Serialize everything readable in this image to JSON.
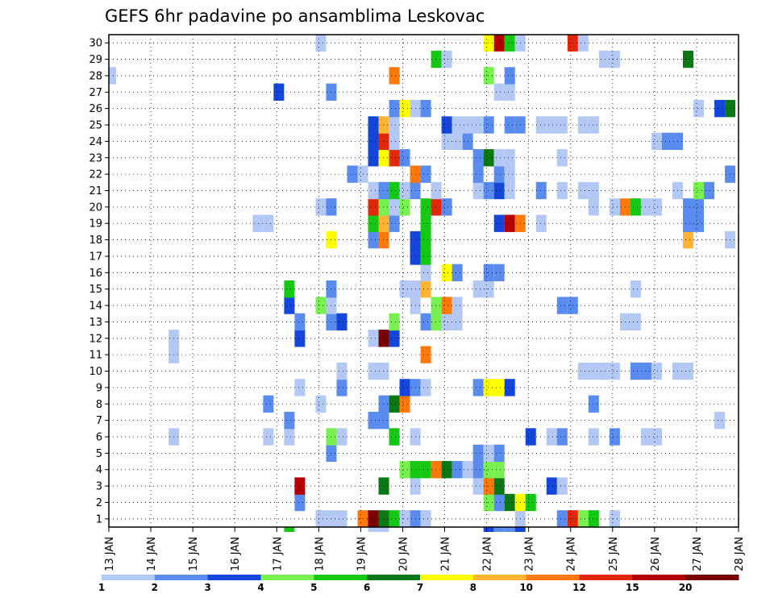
{
  "chart_data": {
    "type": "heatmap",
    "title": "GEFS 6hr padavine po ansamblima Leskovac",
    "xlabel": "",
    "ylabel": "",
    "x_ticks": [
      "13 JAN",
      "14 JAN",
      "15 JAN",
      "16 JAN",
      "17 JAN",
      "18 JAN",
      "19 JAN",
      "20 JAN",
      "21 JAN",
      "22 JAN",
      "23 JAN",
      "24 JAN",
      "25 JAN",
      "26 JAN",
      "27 JAN",
      "28 JAN"
    ],
    "x_range_days": [
      13,
      28
    ],
    "steps_per_day": 4,
    "y_ticks": [
      "1",
      "2",
      "3",
      "4",
      "5",
      "6",
      "7",
      "8",
      "9",
      "10",
      "11",
      "12",
      "13",
      "14",
      "15",
      "16",
      "17",
      "18",
      "19",
      "20",
      "21",
      "22",
      "23",
      "24",
      "25",
      "26",
      "27",
      "28",
      "29",
      "30"
    ],
    "y_range": [
      0,
      30
    ],
    "grid": true,
    "legend": {
      "position": "bottom",
      "labels": [
        "1",
        "2",
        "3",
        "4",
        "5",
        "6",
        "7",
        "8",
        "10",
        "12",
        "15",
        "20"
      ],
      "colors": [
        "#b4c8f5",
        "#5a8cf0",
        "#1446dc",
        "#78f050",
        "#14c814",
        "#0a7814",
        "#ffff00",
        "#ffb432",
        "#ff780a",
        "#e1280a",
        "#b40000",
        "#780000"
      ]
    },
    "cells": [
      {
        "m": 1,
        "x": 18.05,
        "v": 1
      },
      {
        "m": 1,
        "x": 18.3,
        "v": 1
      },
      {
        "m": 1,
        "x": 18.55,
        "v": 1
      },
      {
        "m": 1,
        "x": 19.05,
        "v": 10
      },
      {
        "m": 1,
        "x": 19.3,
        "v": 20
      },
      {
        "m": 1,
        "x": 19.55,
        "v": 6
      },
      {
        "m": 1,
        "x": 19.8,
        "v": 5
      },
      {
        "m": 1,
        "x": 20.05,
        "v": 1
      },
      {
        "m": 1,
        "x": 20.3,
        "v": 2
      },
      {
        "m": 1,
        "x": 20.55,
        "v": 1
      },
      {
        "m": 1,
        "x": 22.8,
        "v": 1
      },
      {
        "m": 1,
        "x": 23.8,
        "v": 2
      },
      {
        "m": 1,
        "x": 24.05,
        "v": 12
      },
      {
        "m": 1,
        "x": 24.3,
        "v": 4
      },
      {
        "m": 1,
        "x": 24.55,
        "v": 5
      },
      {
        "m": 1,
        "x": 25.05,
        "v": 1
      },
      {
        "m": 2,
        "x": 17.55,
        "v": 2
      },
      {
        "m": 2,
        "x": 22.05,
        "v": 4
      },
      {
        "m": 2,
        "x": 22.3,
        "v": 2
      },
      {
        "m": 2,
        "x": 22.55,
        "v": 6
      },
      {
        "m": 2,
        "x": 22.8,
        "v": 7
      },
      {
        "m": 2,
        "x": 23.05,
        "v": 5
      },
      {
        "m": 3,
        "x": 17.55,
        "v": 15
      },
      {
        "m": 3,
        "x": 19.55,
        "v": 6
      },
      {
        "m": 3,
        "x": 20.3,
        "v": 1
      },
      {
        "m": 3,
        "x": 21.8,
        "v": 1
      },
      {
        "m": 3,
        "x": 22.05,
        "v": 10
      },
      {
        "m": 3,
        "x": 22.3,
        "v": 6
      },
      {
        "m": 3,
        "x": 23.55,
        "v": 3
      },
      {
        "m": 3,
        "x": 23.8,
        "v": 1
      },
      {
        "m": 4,
        "x": 20.05,
        "v": 4
      },
      {
        "m": 4,
        "x": 20.3,
        "v": 5
      },
      {
        "m": 4,
        "x": 20.55,
        "v": 5
      },
      {
        "m": 4,
        "x": 20.8,
        "v": 10
      },
      {
        "m": 4,
        "x": 21.05,
        "v": 6
      },
      {
        "m": 4,
        "x": 21.3,
        "v": 2
      },
      {
        "m": 4,
        "x": 21.55,
        "v": 1
      },
      {
        "m": 4,
        "x": 21.8,
        "v": 2
      },
      {
        "m": 4,
        "x": 22.05,
        "v": 4
      },
      {
        "m": 4,
        "x": 22.3,
        "v": 4
      },
      {
        "m": 5,
        "x": 18.3,
        "v": 2
      },
      {
        "m": 5,
        "x": 21.8,
        "v": 2
      },
      {
        "m": 5,
        "x": 22.05,
        "v": 1
      },
      {
        "m": 5,
        "x": 22.3,
        "v": 2
      },
      {
        "m": 6,
        "x": 14.55,
        "v": 1
      },
      {
        "m": 6,
        "x": 16.8,
        "v": 1
      },
      {
        "m": 6,
        "x": 17.3,
        "v": 1
      },
      {
        "m": 6,
        "x": 18.3,
        "v": 4
      },
      {
        "m": 6,
        "x": 18.55,
        "v": 1
      },
      {
        "m": 6,
        "x": 19.8,
        "v": 5
      },
      {
        "m": 6,
        "x": 20.3,
        "v": 1
      },
      {
        "m": 6,
        "x": 23.05,
        "v": 3
      },
      {
        "m": 6,
        "x": 23.55,
        "v": 1
      },
      {
        "m": 6,
        "x": 23.8,
        "v": 2
      },
      {
        "m": 6,
        "x": 24.55,
        "v": 1
      },
      {
        "m": 6,
        "x": 25.05,
        "v": 2
      },
      {
        "m": 6,
        "x": 25.8,
        "v": 1
      },
      {
        "m": 6,
        "x": 26.05,
        "v": 1
      },
      {
        "m": 7,
        "x": 17.3,
        "v": 2
      },
      {
        "m": 7,
        "x": 19.3,
        "v": 2
      },
      {
        "m": 7,
        "x": 19.55,
        "v": 2
      },
      {
        "m": 7,
        "x": 27.55,
        "v": 1
      },
      {
        "m": 8,
        "x": 16.8,
        "v": 2
      },
      {
        "m": 8,
        "x": 18.05,
        "v": 1
      },
      {
        "m": 8,
        "x": 19.55,
        "v": 2
      },
      {
        "m": 8,
        "x": 19.8,
        "v": 6
      },
      {
        "m": 8,
        "x": 20.05,
        "v": 10
      },
      {
        "m": 8,
        "x": 24.55,
        "v": 2
      },
      {
        "m": 9,
        "x": 17.55,
        "v": 1
      },
      {
        "m": 9,
        "x": 18.55,
        "v": 2
      },
      {
        "m": 9,
        "x": 20.05,
        "v": 3
      },
      {
        "m": 9,
        "x": 20.3,
        "v": 2
      },
      {
        "m": 9,
        "x": 20.55,
        "v": 1
      },
      {
        "m": 9,
        "x": 21.8,
        "v": 2
      },
      {
        "m": 9,
        "x": 22.05,
        "v": 7
      },
      {
        "m": 9,
        "x": 22.3,
        "v": 7
      },
      {
        "m": 9,
        "x": 22.55,
        "v": 3
      },
      {
        "m": 10,
        "x": 18.55,
        "v": 1
      },
      {
        "m": 10,
        "x": 19.3,
        "v": 1
      },
      {
        "m": 10,
        "x": 19.55,
        "v": 1
      },
      {
        "m": 10,
        "x": 24.3,
        "v": 1
      },
      {
        "m": 10,
        "x": 24.55,
        "v": 1
      },
      {
        "m": 10,
        "x": 24.8,
        "v": 1
      },
      {
        "m": 10,
        "x": 25.05,
        "v": 1
      },
      {
        "m": 10,
        "x": 25.55,
        "v": 2
      },
      {
        "m": 10,
        "x": 25.8,
        "v": 2
      },
      {
        "m": 10,
        "x": 26.05,
        "v": 1
      },
      {
        "m": 10,
        "x": 26.55,
        "v": 1
      },
      {
        "m": 10,
        "x": 26.8,
        "v": 1
      },
      {
        "m": 11,
        "x": 14.55,
        "v": 1
      },
      {
        "m": 11,
        "x": 20.55,
        "v": 10
      },
      {
        "m": 12,
        "x": 14.55,
        "v": 1
      },
      {
        "m": 12,
        "x": 17.55,
        "v": 3
      },
      {
        "m": 12,
        "x": 19.3,
        "v": 1
      },
      {
        "m": 12,
        "x": 19.55,
        "v": 20
      },
      {
        "m": 12,
        "x": 19.8,
        "v": 3
      },
      {
        "m": 13,
        "x": 17.55,
        "v": 2
      },
      {
        "m": 13,
        "x": 18.3,
        "v": 2
      },
      {
        "m": 13,
        "x": 18.55,
        "v": 3
      },
      {
        "m": 13,
        "x": 19.8,
        "v": 4
      },
      {
        "m": 13,
        "x": 20.55,
        "v": 2
      },
      {
        "m": 13,
        "x": 20.8,
        "v": 4
      },
      {
        "m": 13,
        "x": 21.05,
        "v": 1
      },
      {
        "m": 13,
        "x": 21.3,
        "v": 1
      },
      {
        "m": 13,
        "x": 25.3,
        "v": 1
      },
      {
        "m": 13,
        "x": 25.55,
        "v": 1
      },
      {
        "m": 14,
        "x": 17.3,
        "v": 3
      },
      {
        "m": 14,
        "x": 18.05,
        "v": 4
      },
      {
        "m": 14,
        "x": 18.3,
        "v": 1
      },
      {
        "m": 14,
        "x": 20.3,
        "v": 1
      },
      {
        "m": 14,
        "x": 20.8,
        "v": 4
      },
      {
        "m": 14,
        "x": 21.05,
        "v": 10
      },
      {
        "m": 14,
        "x": 21.3,
        "v": 1
      },
      {
        "m": 14,
        "x": 23.8,
        "v": 2
      },
      {
        "m": 14,
        "x": 24.05,
        "v": 2
      },
      {
        "m": 15,
        "x": 17.3,
        "v": 5
      },
      {
        "m": 15,
        "x": 18.3,
        "v": 2
      },
      {
        "m": 15,
        "x": 20.05,
        "v": 1
      },
      {
        "m": 15,
        "x": 20.3,
        "v": 1
      },
      {
        "m": 15,
        "x": 20.55,
        "v": 8
      },
      {
        "m": 15,
        "x": 21.8,
        "v": 1
      },
      {
        "m": 15,
        "x": 22.05,
        "v": 1
      },
      {
        "m": 15,
        "x": 25.55,
        "v": 1
      },
      {
        "m": 16,
        "x": 20.55,
        "v": 1
      },
      {
        "m": 16,
        "x": 21.05,
        "v": 7
      },
      {
        "m": 16,
        "x": 21.3,
        "v": 2
      },
      {
        "m": 16,
        "x": 22.05,
        "v": 2
      },
      {
        "m": 16,
        "x": 22.3,
        "v": 2
      },
      {
        "m": 17,
        "x": 20.3,
        "v": 3
      },
      {
        "m": 17,
        "x": 20.55,
        "v": 5
      },
      {
        "m": 18,
        "x": 18.3,
        "v": 7
      },
      {
        "m": 18,
        "x": 19.3,
        "v": 2
      },
      {
        "m": 18,
        "x": 19.55,
        "v": 10
      },
      {
        "m": 18,
        "x": 20.3,
        "v": 3
      },
      {
        "m": 18,
        "x": 20.55,
        "v": 5
      },
      {
        "m": 18,
        "x": 26.8,
        "v": 8
      },
      {
        "m": 18,
        "x": 27.8,
        "v": 1
      },
      {
        "m": 19,
        "x": 16.55,
        "v": 1
      },
      {
        "m": 19,
        "x": 16.8,
        "v": 1
      },
      {
        "m": 19,
        "x": 19.3,
        "v": 5
      },
      {
        "m": 19,
        "x": 19.55,
        "v": 8
      },
      {
        "m": 19,
        "x": 19.8,
        "v": 2
      },
      {
        "m": 19,
        "x": 20.55,
        "v": 5
      },
      {
        "m": 19,
        "x": 22.3,
        "v": 3
      },
      {
        "m": 19,
        "x": 22.55,
        "v": 15
      },
      {
        "m": 19,
        "x": 22.8,
        "v": 10
      },
      {
        "m": 19,
        "x": 23.3,
        "v": 1
      },
      {
        "m": 19,
        "x": 26.8,
        "v": 2
      },
      {
        "m": 19,
        "x": 27.05,
        "v": 2
      },
      {
        "m": 20,
        "x": 18.05,
        "v": 1
      },
      {
        "m": 20,
        "x": 18.3,
        "v": 2
      },
      {
        "m": 20,
        "x": 19.3,
        "v": 12
      },
      {
        "m": 20,
        "x": 19.55,
        "v": 4
      },
      {
        "m": 20,
        "x": 19.8,
        "v": 1
      },
      {
        "m": 20,
        "x": 20.05,
        "v": 4
      },
      {
        "m": 20,
        "x": 20.55,
        "v": 5
      },
      {
        "m": 20,
        "x": 20.8,
        "v": 12
      },
      {
        "m": 20,
        "x": 21.05,
        "v": 2
      },
      {
        "m": 20,
        "x": 24.55,
        "v": 1
      },
      {
        "m": 20,
        "x": 25.05,
        "v": 1
      },
      {
        "m": 20,
        "x": 25.3,
        "v": 10
      },
      {
        "m": 20,
        "x": 25.55,
        "v": 5
      },
      {
        "m": 20,
        "x": 25.8,
        "v": 1
      },
      {
        "m": 20,
        "x": 26.05,
        "v": 1
      },
      {
        "m": 20,
        "x": 26.8,
        "v": 2
      },
      {
        "m": 20,
        "x": 27.05,
        "v": 2
      },
      {
        "m": 21,
        "x": 19.3,
        "v": 1
      },
      {
        "m": 21,
        "x": 19.55,
        "v": 2
      },
      {
        "m": 21,
        "x": 19.8,
        "v": 5
      },
      {
        "m": 21,
        "x": 20.05,
        "v": 1
      },
      {
        "m": 21,
        "x": 20.3,
        "v": 2
      },
      {
        "m": 21,
        "x": 20.8,
        "v": 1
      },
      {
        "m": 21,
        "x": 21.8,
        "v": 1
      },
      {
        "m": 21,
        "x": 22.05,
        "v": 2
      },
      {
        "m": 21,
        "x": 22.3,
        "v": 3
      },
      {
        "m": 21,
        "x": 22.55,
        "v": 1
      },
      {
        "m": 21,
        "x": 23.3,
        "v": 2
      },
      {
        "m": 21,
        "x": 23.8,
        "v": 1
      },
      {
        "m": 21,
        "x": 24.3,
        "v": 1
      },
      {
        "m": 21,
        "x": 24.55,
        "v": 1
      },
      {
        "m": 21,
        "x": 26.55,
        "v": 1
      },
      {
        "m": 21,
        "x": 27.05,
        "v": 4
      },
      {
        "m": 21,
        "x": 27.3,
        "v": 2
      },
      {
        "m": 22,
        "x": 18.8,
        "v": 2
      },
      {
        "m": 22,
        "x": 19.05,
        "v": 1
      },
      {
        "m": 22,
        "x": 20.3,
        "v": 10
      },
      {
        "m": 22,
        "x": 20.55,
        "v": 2
      },
      {
        "m": 22,
        "x": 21.8,
        "v": 2
      },
      {
        "m": 22,
        "x": 22.3,
        "v": 2
      },
      {
        "m": 22,
        "x": 22.55,
        "v": 1
      },
      {
        "m": 22,
        "x": 27.8,
        "v": 2
      },
      {
        "m": 23,
        "x": 19.3,
        "v": 3
      },
      {
        "m": 23,
        "x": 19.55,
        "v": 7
      },
      {
        "m": 23,
        "x": 19.8,
        "v": 12
      },
      {
        "m": 23,
        "x": 20.05,
        "v": 2
      },
      {
        "m": 23,
        "x": 21.8,
        "v": 2
      },
      {
        "m": 23,
        "x": 22.05,
        "v": 6
      },
      {
        "m": 23,
        "x": 22.3,
        "v": 1
      },
      {
        "m": 23,
        "x": 22.55,
        "v": 1
      },
      {
        "m": 23,
        "x": 23.8,
        "v": 1
      },
      {
        "m": 24,
        "x": 19.3,
        "v": 3
      },
      {
        "m": 24,
        "x": 19.55,
        "v": 12
      },
      {
        "m": 24,
        "x": 19.8,
        "v": 1
      },
      {
        "m": 24,
        "x": 21.05,
        "v": 1
      },
      {
        "m": 24,
        "x": 21.3,
        "v": 1
      },
      {
        "m": 24,
        "x": 21.55,
        "v": 2
      },
      {
        "m": 24,
        "x": 26.05,
        "v": 1
      },
      {
        "m": 24,
        "x": 26.3,
        "v": 2
      },
      {
        "m": 24,
        "x": 26.55,
        "v": 2
      },
      {
        "m": 25,
        "x": 19.3,
        "v": 3
      },
      {
        "m": 25,
        "x": 19.55,
        "v": 8
      },
      {
        "m": 25,
        "x": 19.8,
        "v": 1
      },
      {
        "m": 25,
        "x": 21.05,
        "v": 3
      },
      {
        "m": 25,
        "x": 21.3,
        "v": 1
      },
      {
        "m": 25,
        "x": 21.55,
        "v": 1
      },
      {
        "m": 25,
        "x": 21.8,
        "v": 1
      },
      {
        "m": 25,
        "x": 22.05,
        "v": 2
      },
      {
        "m": 25,
        "x": 22.55,
        "v": 2
      },
      {
        "m": 25,
        "x": 22.8,
        "v": 2
      },
      {
        "m": 25,
        "x": 23.3,
        "v": 1
      },
      {
        "m": 25,
        "x": 23.55,
        "v": 1
      },
      {
        "m": 25,
        "x": 23.8,
        "v": 1
      },
      {
        "m": 25,
        "x": 24.3,
        "v": 1
      },
      {
        "m": 25,
        "x": 24.55,
        "v": 1
      },
      {
        "m": 26,
        "x": 19.8,
        "v": 2
      },
      {
        "m": 26,
        "x": 20.05,
        "v": 7
      },
      {
        "m": 26,
        "x": 20.3,
        "v": 1
      },
      {
        "m": 26,
        "x": 20.55,
        "v": 2
      },
      {
        "m": 26,
        "x": 27.05,
        "v": 1
      },
      {
        "m": 26,
        "x": 27.55,
        "v": 3
      },
      {
        "m": 26,
        "x": 27.8,
        "v": 6
      },
      {
        "m": 27,
        "x": 17.05,
        "v": 3
      },
      {
        "m": 27,
        "x": 18.3,
        "v": 2
      },
      {
        "m": 27,
        "x": 22.3,
        "v": 1
      },
      {
        "m": 27,
        "x": 22.55,
        "v": 1
      },
      {
        "m": 28,
        "x": 13.05,
        "v": 1
      },
      {
        "m": 28,
        "x": 19.8,
        "v": 10
      },
      {
        "m": 28,
        "x": 22.05,
        "v": 4
      },
      {
        "m": 28,
        "x": 22.55,
        "v": 2
      },
      {
        "m": 29,
        "x": 20.8,
        "v": 5
      },
      {
        "m": 29,
        "x": 21.05,
        "v": 1
      },
      {
        "m": 29,
        "x": 24.8,
        "v": 1
      },
      {
        "m": 29,
        "x": 25.05,
        "v": 1
      },
      {
        "m": 29,
        "x": 26.8,
        "v": 6
      },
      {
        "m": 30,
        "x": 18.05,
        "v": 1
      },
      {
        "m": 30,
        "x": 22.05,
        "v": 7
      },
      {
        "m": 30,
        "x": 22.3,
        "v": 15
      },
      {
        "m": 30,
        "x": 22.55,
        "v": 5
      },
      {
        "m": 30,
        "x": 22.8,
        "v": 1
      },
      {
        "m": 30,
        "x": 24.05,
        "v": 12
      },
      {
        "m": 30,
        "x": 24.3,
        "v": 1
      },
      {
        "m": 0,
        "x": 17.3,
        "v": 5
      },
      {
        "m": 0,
        "x": 19.3,
        "v": 1
      },
      {
        "m": 0,
        "x": 19.55,
        "v": 1
      },
      {
        "m": 0,
        "x": 22.05,
        "v": 3
      },
      {
        "m": 0,
        "x": 22.3,
        "v": 2
      },
      {
        "m": 0,
        "x": 22.55,
        "v": 2
      },
      {
        "m": 0,
        "x": 22.8,
        "v": 3
      }
    ]
  }
}
